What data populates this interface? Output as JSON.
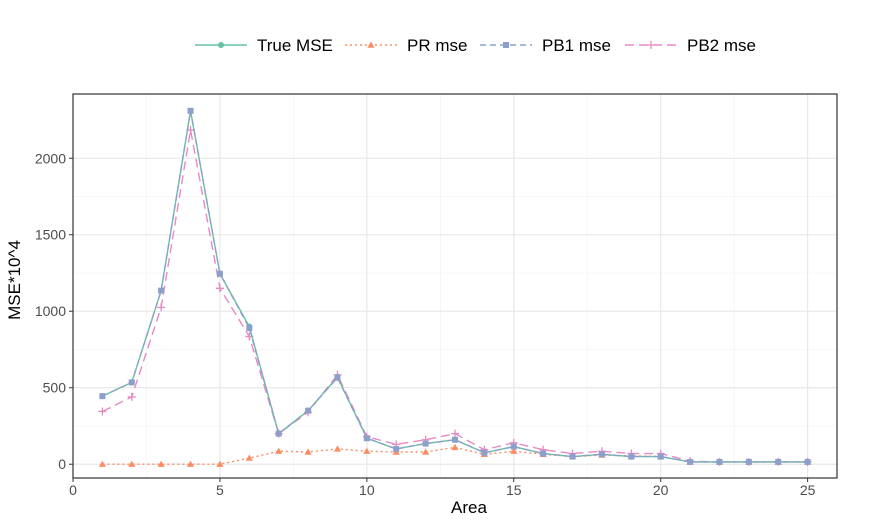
{
  "chart_data": {
    "type": "line",
    "title": "",
    "xlabel": "Area",
    "ylabel": "MSE*10^4",
    "xlim": [
      0,
      26
    ],
    "ylim": [
      -90,
      2420
    ],
    "x_ticks": [
      0,
      5,
      10,
      15,
      20,
      25
    ],
    "y_ticks": [
      0,
      500,
      1000,
      1500,
      2000
    ],
    "grid": true,
    "legend_position": "top",
    "x": [
      1,
      2,
      3,
      4,
      5,
      6,
      7,
      8,
      9,
      10,
      11,
      12,
      13,
      14,
      15,
      16,
      17,
      18,
      19,
      20,
      21,
      22,
      23,
      24,
      25
    ],
    "series": [
      {
        "name": "True MSE",
        "color": "#66c2a5",
        "marker": "circle",
        "dash": "solid",
        "values": [
          445,
          535,
          1135,
          2310,
          1245,
          900,
          200,
          350,
          570,
          170,
          100,
          135,
          160,
          75,
          115,
          70,
          50,
          65,
          50,
          50,
          15,
          15,
          15,
          15,
          15
        ]
      },
      {
        "name": "PR mse",
        "color": "#fc8d62",
        "marker": "triangle",
        "dash": "dotted",
        "values": [
          0,
          0,
          0,
          0,
          0,
          40,
          85,
          80,
          100,
          85,
          80,
          80,
          110,
          65,
          85,
          65,
          50,
          60,
          55,
          50,
          15,
          15,
          15,
          15,
          15
        ]
      },
      {
        "name": "PB1 mse",
        "color": "#8da0cb",
        "marker": "square",
        "dash": "dashed",
        "values": [
          445,
          535,
          1135,
          2310,
          1245,
          890,
          200,
          350,
          565,
          170,
          100,
          135,
          160,
          75,
          115,
          70,
          50,
          65,
          50,
          50,
          15,
          15,
          15,
          15,
          15
        ]
      },
      {
        "name": "PB2 mse",
        "color": "#e78ac3",
        "marker": "plus",
        "dash": "longdash",
        "values": [
          345,
          440,
          1025,
          2185,
          1150,
          835,
          200,
          340,
          585,
          180,
          130,
          160,
          200,
          95,
          140,
          95,
          70,
          85,
          70,
          70,
          20,
          15,
          15,
          15,
          15
        ]
      }
    ]
  }
}
